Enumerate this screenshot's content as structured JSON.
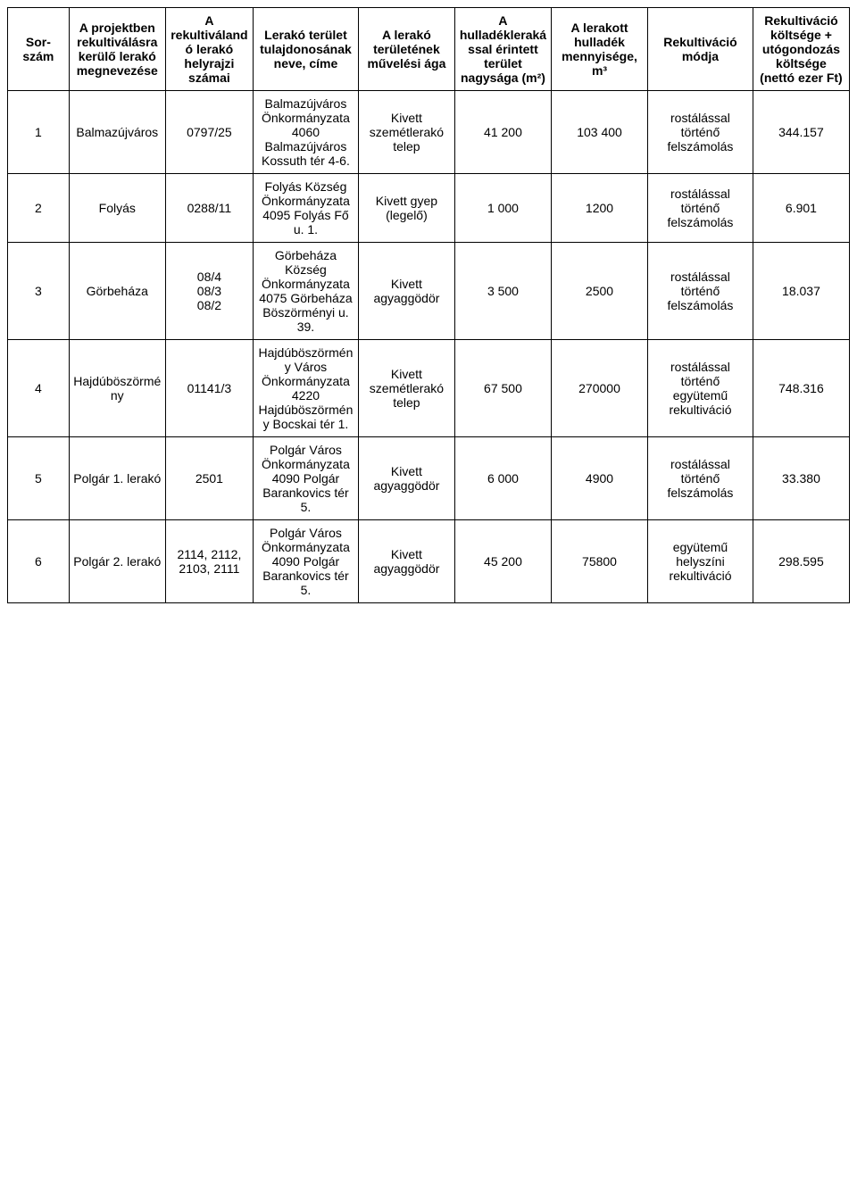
{
  "table": {
    "headers": {
      "sorszam": "Sor-szám",
      "megnev": "A projektben rekultiválásra kerülő lerakó megnevezése",
      "helyrajzi": "A rekultiválandó lerakó helyrajzi számai",
      "tulajdon": "Lerakó terület tulajdonosának neve, címe",
      "muveles": "A lerakó területének művelési ága",
      "terulet": "A hulladéklerakással érintett terület nagysága (m²)",
      "mennyiseg": "A lerakott hulladék mennyisége, m³",
      "modja": "Rekultiváció módja",
      "koltseg": "Rekultiváció költsége + utógondozás költsége (nettó ezer Ft)"
    },
    "rows": [
      {
        "sorszam": "1",
        "megnev": "Balmazújváros",
        "helyrajzi": "0797/25",
        "tulajdon": "Balmazújváros Önkormányzata 4060 Balmazújváros Kossuth tér 4-6.",
        "muveles": "Kivett szemétlerakó telep",
        "terulet": "41 200",
        "mennyiseg": "103 400",
        "modja": "rostálással történő felszámolás",
        "koltseg": "344.157"
      },
      {
        "sorszam": "2",
        "megnev": "Folyás",
        "helyrajzi": "0288/11",
        "tulajdon": "Folyás Község Önkormányzata 4095 Folyás Fő u. 1.",
        "muveles": "Kivett gyep (legelő)",
        "terulet": "1 000",
        "mennyiseg": "1200",
        "modja": "rostálással történő felszámolás",
        "koltseg": "6.901"
      },
      {
        "sorszam": "3",
        "megnev": "Görbeháza",
        "helyrajzi": "08/4\n08/3\n08/2",
        "tulajdon": "Görbeháza Község Önkormányzata 4075 Görbeháza Böszörményi u. 39.",
        "muveles": "Kivett agyaggödör",
        "terulet": "3 500",
        "mennyiseg": "2500",
        "modja": "rostálással történő felszámolás",
        "koltseg": "18.037"
      },
      {
        "sorszam": "4",
        "megnev": "Hajdúböszörmény",
        "helyrajzi": "01141/3",
        "tulajdon": "Hajdúböszörmény Város Önkormányzata 4220 Hajdúböszörmény Bocskai tér 1.",
        "muveles": "Kivett szemétlerakó telep",
        "terulet": "67 500",
        "mennyiseg": "270000",
        "modja": "rostálással történő együtemű rekultiváció",
        "koltseg": "748.316"
      },
      {
        "sorszam": "5",
        "megnev": "Polgár 1. lerakó",
        "helyrajzi": "2501",
        "tulajdon": "Polgár Város Önkormányzata 4090 Polgár Barankovics tér 5.",
        "muveles": "Kivett agyaggödör",
        "terulet": "6 000",
        "mennyiseg": "4900",
        "modja": "rostálással történő felszámolás",
        "koltseg": "33.380"
      },
      {
        "sorszam": "6",
        "megnev": "Polgár 2. lerakó",
        "helyrajzi": "2114, 2112, 2103, 2111",
        "tulajdon": "Polgár Város Önkormányzata 4090 Polgár Barankovics tér 5.",
        "muveles": "Kivett agyaggödör",
        "terulet": "45 200",
        "mennyiseg": "75800",
        "modja": "együtemű helyszíni rekultiváció",
        "koltseg": "298.595"
      }
    ]
  }
}
